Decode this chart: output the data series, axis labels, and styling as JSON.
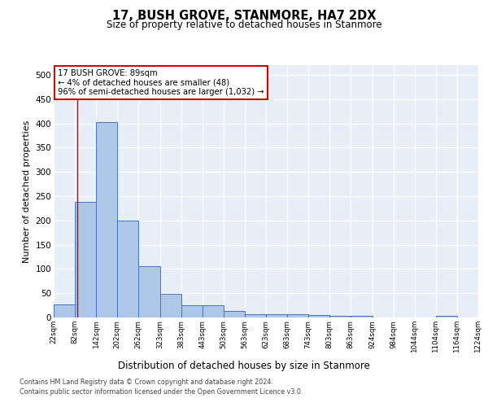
{
  "title": "17, BUSH GROVE, STANMORE, HA7 2DX",
  "subtitle": "Size of property relative to detached houses in Stanmore",
  "xlabel": "Distribution of detached houses by size in Stanmore",
  "ylabel": "Number of detached properties",
  "bin_edges": [
    22,
    82,
    142,
    202,
    262,
    323,
    383,
    443,
    503,
    563,
    623,
    683,
    743,
    803,
    863,
    924,
    984,
    1044,
    1104,
    1164,
    1224
  ],
  "bar_heights": [
    27,
    238,
    403,
    199,
    105,
    48,
    25,
    25,
    13,
    6,
    6,
    6,
    5,
    3,
    3,
    0,
    0,
    0,
    3,
    0
  ],
  "bar_color": "#aec6e8",
  "bar_edge_color": "#4472c4",
  "property_line_x": 89,
  "property_line_color": "#cc0000",
  "annotation_line1": "17 BUSH GROVE: 89sqm",
  "annotation_line2": "← 4% of detached houses are smaller (48)",
  "annotation_line3": "96% of semi-detached houses are larger (1,032) →",
  "annotation_box_color": "#ffffff",
  "annotation_box_edge": "#cc0000",
  "ylim": [
    0,
    520
  ],
  "yticks": [
    0,
    50,
    100,
    150,
    200,
    250,
    300,
    350,
    400,
    450,
    500
  ],
  "background_color": "#e8eef8",
  "grid_color": "#ffffff",
  "footer_line1": "Contains HM Land Registry data © Crown copyright and database right 2024.",
  "footer_line2": "Contains public sector information licensed under the Open Government Licence v3.0."
}
